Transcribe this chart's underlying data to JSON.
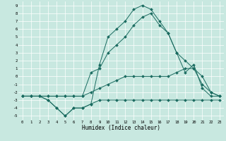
{
  "xlabel": "Humidex (Indice chaleur)",
  "bg_color": "#c8e8e0",
  "grid_color": "#ffffff",
  "line_color": "#1a6b60",
  "xlim": [
    -0.5,
    23.5
  ],
  "ylim": [
    -5.5,
    9.5
  ],
  "x_ticks": [
    0,
    1,
    2,
    3,
    4,
    5,
    6,
    7,
    8,
    9,
    10,
    11,
    12,
    13,
    14,
    15,
    16,
    17,
    18,
    19,
    20,
    21,
    22,
    23
  ],
  "y_ticks": [
    -5,
    -4,
    -3,
    -2,
    -1,
    0,
    1,
    2,
    3,
    4,
    5,
    6,
    7,
    8,
    9
  ],
  "curve1_x": [
    0,
    1,
    2,
    3,
    4,
    5,
    6,
    7,
    8,
    9,
    10,
    11,
    12,
    13,
    14,
    15,
    16,
    17,
    18,
    19,
    20,
    21,
    22,
    23
  ],
  "curve1_y": [
    -2.5,
    -2.5,
    -2.5,
    -3.0,
    -4.0,
    -5.0,
    -4.0,
    -4.0,
    -3.5,
    -3.0,
    -3.0,
    -3.0,
    -3.0,
    -3.0,
    -3.0,
    -3.0,
    -3.0,
    -3.0,
    -3.0,
    -3.0,
    -3.0,
    -3.0,
    -3.0,
    -3.0
  ],
  "curve2_x": [
    0,
    1,
    2,
    3,
    4,
    5,
    6,
    7,
    8,
    9,
    10,
    11,
    12,
    13,
    14,
    15,
    16,
    17,
    18,
    19,
    20,
    21,
    22,
    23
  ],
  "curve2_y": [
    -2.5,
    -2.5,
    -2.5,
    -2.5,
    -2.5,
    -2.5,
    -2.5,
    -2.5,
    -2.0,
    -1.5,
    -1.0,
    -0.5,
    0.0,
    0.0,
    0.0,
    0.0,
    0.0,
    0.0,
    0.5,
    1.0,
    1.0,
    0.0,
    -2.0,
    -2.5
  ],
  "curve3_x": [
    0,
    1,
    2,
    3,
    4,
    5,
    6,
    7,
    8,
    9,
    10,
    11,
    12,
    13,
    14,
    15,
    16,
    17,
    18,
    19,
    20,
    21,
    22,
    23
  ],
  "curve3_y": [
    -2.5,
    -2.5,
    -2.5,
    -2.5,
    -2.5,
    -2.5,
    -2.5,
    -2.5,
    0.5,
    1.0,
    3.0,
    4.0,
    5.0,
    6.5,
    7.5,
    8.0,
    6.5,
    5.5,
    3.0,
    2.0,
    1.0,
    -1.0,
    -2.0,
    -2.5
  ],
  "curve4_x": [
    0,
    1,
    2,
    3,
    4,
    5,
    6,
    7,
    8,
    9,
    10,
    11,
    12,
    13,
    14,
    15,
    16,
    17,
    18,
    19,
    20,
    21,
    22,
    23
  ],
  "curve4_y": [
    -2.5,
    -2.5,
    -2.5,
    -3.0,
    -4.0,
    -5.0,
    -4.0,
    -4.0,
    -3.5,
    1.5,
    5.0,
    6.0,
    7.0,
    8.5,
    9.0,
    8.5,
    7.0,
    5.5,
    3.0,
    0.5,
    1.5,
    -1.5,
    -2.5,
    -2.5
  ]
}
